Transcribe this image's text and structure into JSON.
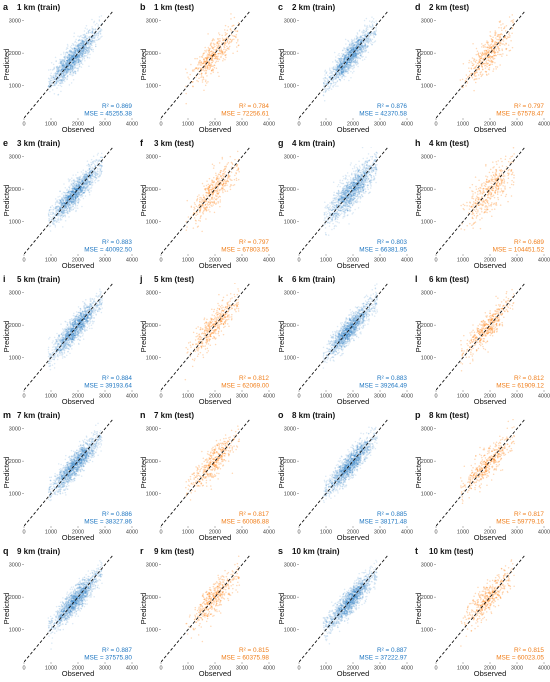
{
  "colors": {
    "train": "#1f77c2",
    "test": "#ff7f0e",
    "train_text": "#1f77c2",
    "test_text": "#f07e1a",
    "identity_line": "#111111"
  },
  "chart_data": [
    {
      "type": "scatter",
      "letter": "a",
      "title": "1 km (train)",
      "set": "train",
      "r2_label": "R² = 0.869",
      "mse_label": "MSE = 45255.38",
      "xlabel": "Observed",
      "ylabel": "Predicted",
      "xlim": [
        0,
        4000
      ],
      "ylim": [
        0,
        3300
      ],
      "xticks": [
        "0",
        "1000",
        "2000",
        "3000",
        "4000"
      ],
      "yticks": [
        "1000",
        "2000",
        "3000"
      ],
      "identity_line": true,
      "grid": false,
      "point_cloud": {
        "x_center": 1850,
        "x_spread": 430,
        "x_range": [
          900,
          2900
        ],
        "slope": 0.87,
        "intercept": 240,
        "noise": 210
      }
    },
    {
      "type": "scatter",
      "letter": "b",
      "title": "1 km (test)",
      "set": "test",
      "r2_label": "R² = 0.784",
      "mse_label": "MSE = 72256.61",
      "xlabel": "Observed",
      "ylabel": "Predicted",
      "xlim": [
        0,
        4000
      ],
      "ylim": [
        0,
        3300
      ],
      "xticks": [
        "0",
        "1000",
        "2000",
        "3000",
        "4000"
      ],
      "yticks": [
        "1000",
        "2000",
        "3000"
      ],
      "identity_line": true,
      "grid": false,
      "point_cloud": {
        "x_center": 1950,
        "x_spread": 450,
        "x_range": [
          900,
          2900
        ],
        "slope": 0.83,
        "intercept": 330,
        "noise": 260
      }
    },
    {
      "type": "scatter",
      "letter": "c",
      "title": "2 km (train)",
      "set": "train",
      "r2_label": "R² = 0.876",
      "mse_label": "MSE = 42370.58",
      "xlabel": "Observed",
      "ylabel": "Predicted",
      "xlim": [
        0,
        4000
      ],
      "ylim": [
        0,
        3300
      ],
      "xticks": [
        "0",
        "1000",
        "2000",
        "3000",
        "4000"
      ],
      "yticks": [
        "1000",
        "2000",
        "3000"
      ],
      "identity_line": true,
      "grid": false,
      "point_cloud": {
        "x_center": 1900,
        "x_spread": 430,
        "x_range": [
          900,
          2900
        ],
        "slope": 0.88,
        "intercept": 220,
        "noise": 200
      }
    },
    {
      "type": "scatter",
      "letter": "d",
      "title": "2 km (test)",
      "set": "test",
      "r2_label": "R² = 0.797",
      "mse_label": "MSE = 67578.47",
      "xlabel": "Observed",
      "ylabel": "Predicted",
      "xlim": [
        0,
        4000
      ],
      "ylim": [
        0,
        3300
      ],
      "xticks": [
        "0",
        "1000",
        "2000",
        "3000",
        "4000"
      ],
      "yticks": [
        "1000",
        "2000",
        "3000"
      ],
      "identity_line": true,
      "grid": false,
      "point_cloud": {
        "x_center": 1950,
        "x_spread": 440,
        "x_range": [
          900,
          2900
        ],
        "slope": 0.84,
        "intercept": 320,
        "noise": 250
      }
    },
    {
      "type": "scatter",
      "letter": "e",
      "title": "3 km (train)",
      "set": "train",
      "r2_label": "R² = 0.883",
      "mse_label": "MSE = 40092.50",
      "xlabel": "Observed",
      "ylabel": "Predicted",
      "xlim": [
        0,
        4000
      ],
      "ylim": [
        0,
        3300
      ],
      "xticks": [
        "0",
        "1000",
        "2000",
        "3000",
        "4000"
      ],
      "yticks": [
        "1000",
        "2000",
        "3000"
      ],
      "identity_line": true,
      "grid": false,
      "point_cloud": {
        "x_center": 1900,
        "x_spread": 430,
        "x_range": [
          900,
          2900
        ],
        "slope": 0.88,
        "intercept": 220,
        "noise": 195
      }
    },
    {
      "type": "scatter",
      "letter": "f",
      "title": "3 km (test)",
      "set": "test",
      "r2_label": "R² = 0.797",
      "mse_label": "MSE = 67803.55",
      "xlabel": "Observed",
      "ylabel": "Predicted",
      "xlim": [
        0,
        4000
      ],
      "ylim": [
        0,
        3300
      ],
      "xticks": [
        "0",
        "1000",
        "2000",
        "3000",
        "4000"
      ],
      "yticks": [
        "1000",
        "2000",
        "3000"
      ],
      "identity_line": true,
      "grid": false,
      "point_cloud": {
        "x_center": 1950,
        "x_spread": 440,
        "x_range": [
          900,
          2900
        ],
        "slope": 0.84,
        "intercept": 320,
        "noise": 250
      }
    },
    {
      "type": "scatter",
      "letter": "g",
      "title": "4 km (train)",
      "set": "train",
      "r2_label": "R² = 0.803",
      "mse_label": "MSE = 66381.95",
      "xlabel": "Observed",
      "ylabel": "Predicted",
      "xlim": [
        0,
        4000
      ],
      "ylim": [
        0,
        3300
      ],
      "xticks": [
        "0",
        "1000",
        "2000",
        "3000",
        "4000"
      ],
      "yticks": [
        "1000",
        "2000",
        "3000"
      ],
      "identity_line": true,
      "grid": false,
      "point_cloud": {
        "x_center": 1950,
        "x_spread": 440,
        "x_range": [
          900,
          2900
        ],
        "slope": 0.83,
        "intercept": 320,
        "noise": 255
      }
    },
    {
      "type": "scatter",
      "letter": "h",
      "title": "4 km (test)",
      "set": "test",
      "r2_label": "R² = 0.689",
      "mse_label": "MSE = 104451.52",
      "xlabel": "Observed",
      "ylabel": "Predicted",
      "xlim": [
        0,
        4000
      ],
      "ylim": [
        0,
        3300
      ],
      "xticks": [
        "0",
        "1000",
        "2000",
        "3000",
        "4000"
      ],
      "yticks": [
        "1000",
        "2000",
        "3000"
      ],
      "identity_line": true,
      "grid": false,
      "point_cloud": {
        "x_center": 2000,
        "x_spread": 450,
        "x_range": [
          900,
          2900
        ],
        "slope": 0.78,
        "intercept": 420,
        "noise": 320
      }
    },
    {
      "type": "scatter",
      "letter": "i",
      "title": "5 km (train)",
      "set": "train",
      "r2_label": "R² = 0.884",
      "mse_label": "MSE = 39193.64",
      "xlabel": "Observed",
      "ylabel": "Predicted",
      "xlim": [
        0,
        4000
      ],
      "ylim": [
        0,
        3300
      ],
      "xticks": [
        "0",
        "1000",
        "2000",
        "3000",
        "4000"
      ],
      "yticks": [
        "1000",
        "2000",
        "3000"
      ],
      "identity_line": true,
      "grid": false,
      "point_cloud": {
        "x_center": 1900,
        "x_spread": 430,
        "x_range": [
          900,
          2900
        ],
        "slope": 0.88,
        "intercept": 220,
        "noise": 195
      }
    },
    {
      "type": "scatter",
      "letter": "j",
      "title": "5 km (test)",
      "set": "test",
      "r2_label": "R² = 0.812",
      "mse_label": "MSE = 62069.00",
      "xlabel": "Observed",
      "ylabel": "Predicted",
      "xlim": [
        0,
        4000
      ],
      "ylim": [
        0,
        3300
      ],
      "xticks": [
        "0",
        "1000",
        "2000",
        "3000",
        "4000"
      ],
      "yticks": [
        "1000",
        "2000",
        "3000"
      ],
      "identity_line": true,
      "grid": false,
      "point_cloud": {
        "x_center": 1950,
        "x_spread": 440,
        "x_range": [
          900,
          2900
        ],
        "slope": 0.85,
        "intercept": 300,
        "noise": 240
      }
    },
    {
      "type": "scatter",
      "letter": "k",
      "title": "6 km (train)",
      "set": "train",
      "r2_label": "R² = 0.883",
      "mse_label": "MSE = 39264.49",
      "xlabel": "Observed",
      "ylabel": "Predicted",
      "xlim": [
        0,
        4000
      ],
      "ylim": [
        0,
        3300
      ],
      "xticks": [
        "0",
        "1000",
        "2000",
        "3000",
        "4000"
      ],
      "yticks": [
        "1000",
        "2000",
        "3000"
      ],
      "identity_line": true,
      "grid": false,
      "point_cloud": {
        "x_center": 1900,
        "x_spread": 430,
        "x_range": [
          900,
          2900
        ],
        "slope": 0.88,
        "intercept": 220,
        "noise": 195
      }
    },
    {
      "type": "scatter",
      "letter": "l",
      "title": "6 km (test)",
      "set": "test",
      "r2_label": "R² = 0.812",
      "mse_label": "MSE = 61909.12",
      "xlabel": "Observed",
      "ylabel": "Predicted",
      "xlim": [
        0,
        4000
      ],
      "ylim": [
        0,
        3300
      ],
      "xticks": [
        "0",
        "1000",
        "2000",
        "3000",
        "4000"
      ],
      "yticks": [
        "1000",
        "2000",
        "3000"
      ],
      "identity_line": true,
      "grid": false,
      "point_cloud": {
        "x_center": 1950,
        "x_spread": 440,
        "x_range": [
          900,
          2900
        ],
        "slope": 0.85,
        "intercept": 300,
        "noise": 240
      }
    },
    {
      "type": "scatter",
      "letter": "m",
      "title": "7 km (train)",
      "set": "train",
      "r2_label": "R² = 0.886",
      "mse_label": "MSE = 38327.86",
      "xlabel": "Observed",
      "ylabel": "Predicted",
      "xlim": [
        0,
        4000
      ],
      "ylim": [
        0,
        3300
      ],
      "xticks": [
        "0",
        "1000",
        "2000",
        "3000",
        "4000"
      ],
      "yticks": [
        "1000",
        "2000",
        "3000"
      ],
      "identity_line": true,
      "grid": false,
      "point_cloud": {
        "x_center": 1900,
        "x_spread": 430,
        "x_range": [
          900,
          2900
        ],
        "slope": 0.88,
        "intercept": 220,
        "noise": 190
      }
    },
    {
      "type": "scatter",
      "letter": "n",
      "title": "7 km (test)",
      "set": "test",
      "r2_label": "R² = 0.817",
      "mse_label": "MSE = 60086.88",
      "xlabel": "Observed",
      "ylabel": "Predicted",
      "xlim": [
        0,
        4000
      ],
      "ylim": [
        0,
        3300
      ],
      "xticks": [
        "0",
        "1000",
        "2000",
        "3000",
        "4000"
      ],
      "yticks": [
        "1000",
        "2000",
        "3000"
      ],
      "identity_line": true,
      "grid": false,
      "point_cloud": {
        "x_center": 1950,
        "x_spread": 440,
        "x_range": [
          900,
          2900
        ],
        "slope": 0.85,
        "intercept": 300,
        "noise": 235
      }
    },
    {
      "type": "scatter",
      "letter": "o",
      "title": "8 km (train)",
      "set": "train",
      "r2_label": "R² = 0.885",
      "mse_label": "MSE = 38171.48",
      "xlabel": "Observed",
      "ylabel": "Predicted",
      "xlim": [
        0,
        4000
      ],
      "ylim": [
        0,
        3300
      ],
      "xticks": [
        "0",
        "1000",
        "2000",
        "3000",
        "4000"
      ],
      "yticks": [
        "1000",
        "2000",
        "3000"
      ],
      "identity_line": true,
      "grid": false,
      "point_cloud": {
        "x_center": 1900,
        "x_spread": 430,
        "x_range": [
          900,
          2900
        ],
        "slope": 0.88,
        "intercept": 220,
        "noise": 190
      }
    },
    {
      "type": "scatter",
      "letter": "p",
      "title": "8 km (test)",
      "set": "test",
      "r2_label": "R² = 0.817",
      "mse_label": "MSE = 59779.16",
      "xlabel": "Observed",
      "ylabel": "Predicted",
      "xlim": [
        0,
        4000
      ],
      "ylim": [
        0,
        3300
      ],
      "xticks": [
        "0",
        "1000",
        "2000",
        "3000",
        "4000"
      ],
      "yticks": [
        "1000",
        "2000",
        "3000"
      ],
      "identity_line": true,
      "grid": false,
      "point_cloud": {
        "x_center": 1950,
        "x_spread": 440,
        "x_range": [
          900,
          2900
        ],
        "slope": 0.85,
        "intercept": 300,
        "noise": 235
      }
    },
    {
      "type": "scatter",
      "letter": "q",
      "title": "9 km (train)",
      "set": "train",
      "r2_label": "R² = 0.887",
      "mse_label": "MSE = 37575.80",
      "xlabel": "Observed",
      "ylabel": "Predicted",
      "xlim": [
        0,
        4000
      ],
      "ylim": [
        0,
        3300
      ],
      "xticks": [
        "0",
        "1000",
        "2000",
        "3000",
        "4000"
      ],
      "yticks": [
        "1000",
        "2000",
        "3000"
      ],
      "identity_line": true,
      "grid": false,
      "point_cloud": {
        "x_center": 1900,
        "x_spread": 430,
        "x_range": [
          900,
          2900
        ],
        "slope": 0.88,
        "intercept": 220,
        "noise": 190
      }
    },
    {
      "type": "scatter",
      "letter": "r",
      "title": "9 km (test)",
      "set": "test",
      "r2_label": "R² = 0.815",
      "mse_label": "MSE = 60375.98",
      "xlabel": "Observed",
      "ylabel": "Predicted",
      "xlim": [
        0,
        4000
      ],
      "ylim": [
        0,
        3300
      ],
      "xticks": [
        "0",
        "1000",
        "2000",
        "3000",
        "4000"
      ],
      "yticks": [
        "1000",
        "2000",
        "3000"
      ],
      "identity_line": true,
      "grid": false,
      "point_cloud": {
        "x_center": 1950,
        "x_spread": 440,
        "x_range": [
          900,
          2900
        ],
        "slope": 0.85,
        "intercept": 300,
        "noise": 238
      }
    },
    {
      "type": "scatter",
      "letter": "s",
      "title": "10 km (train)",
      "set": "train",
      "r2_label": "R² = 0.887",
      "mse_label": "MSE = 37222.97",
      "xlabel": "Observed",
      "ylabel": "Predicted",
      "xlim": [
        0,
        4000
      ],
      "ylim": [
        0,
        3300
      ],
      "xticks": [
        "0",
        "1000",
        "2000",
        "3000",
        "4000"
      ],
      "yticks": [
        "1000",
        "2000",
        "3000"
      ],
      "identity_line": true,
      "grid": false,
      "point_cloud": {
        "x_center": 1900,
        "x_spread": 430,
        "x_range": [
          900,
          2900
        ],
        "slope": 0.88,
        "intercept": 220,
        "noise": 190
      }
    },
    {
      "type": "scatter",
      "letter": "t",
      "title": "10 km (test)",
      "set": "test",
      "r2_label": "R² = 0.815",
      "mse_label": "MSE = 60023.05",
      "xlabel": "Observed",
      "ylabel": "Predicted",
      "xlim": [
        0,
        4000
      ],
      "ylim": [
        0,
        3300
      ],
      "xticks": [
        "0",
        "1000",
        "2000",
        "3000",
        "4000"
      ],
      "yticks": [
        "1000",
        "2000",
        "3000"
      ],
      "identity_line": true,
      "grid": false,
      "point_cloud": {
        "x_center": 1950,
        "x_spread": 440,
        "x_range": [
          900,
          2900
        ],
        "slope": 0.85,
        "intercept": 300,
        "noise": 238
      }
    }
  ]
}
